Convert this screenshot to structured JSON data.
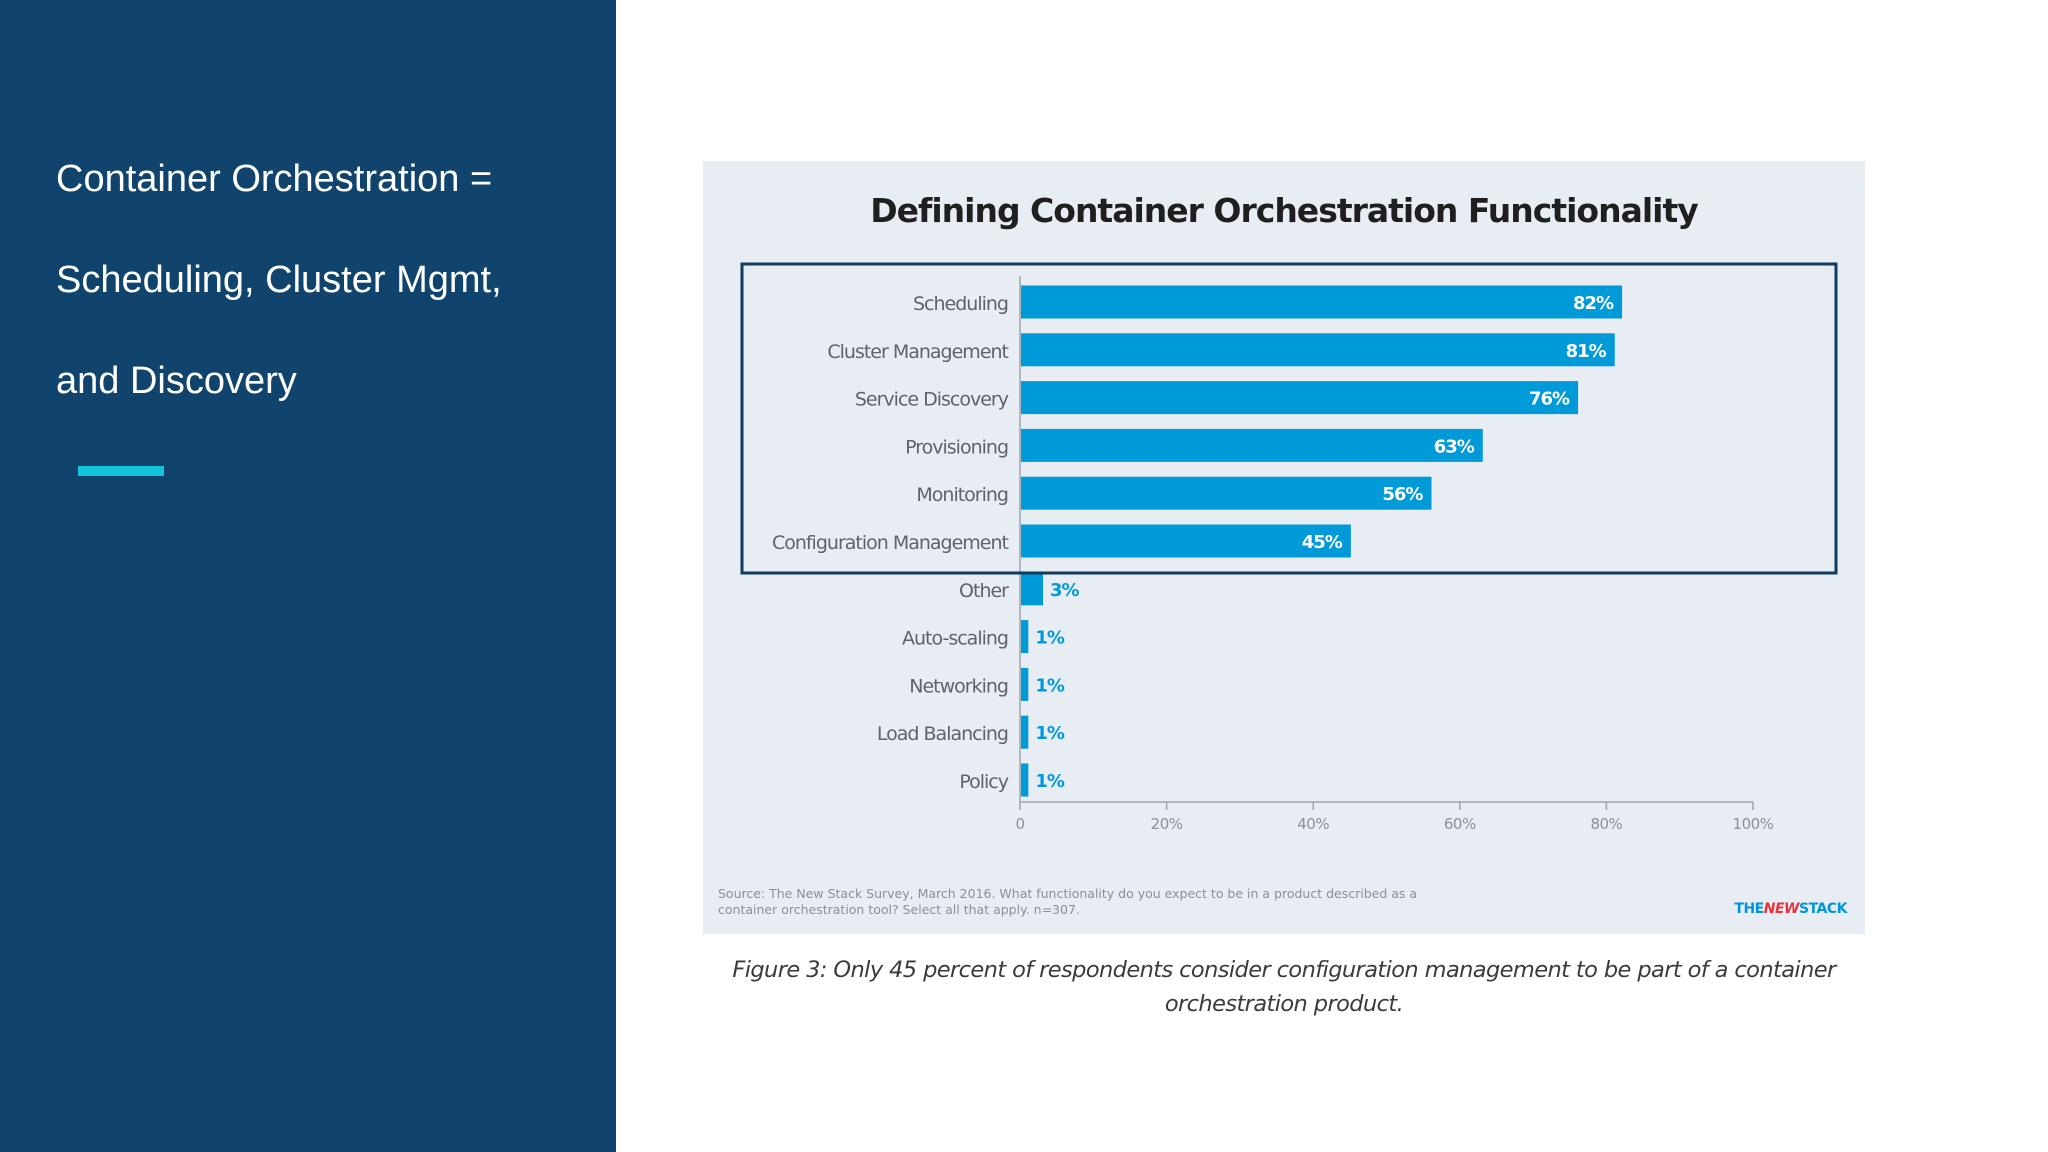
{
  "slide": {
    "heading_lines": [
      "Container Orchestration =",
      "Scheduling, Cluster Mgmt,",
      "and Discovery"
    ],
    "accent_color": "#14c4dc",
    "sidebar_color": "#10446d"
  },
  "figure": {
    "source": "Source: The New Stack Survey, March 2016. What functionality do you expect to be in a product described as a container orchestration tool? Select all that apply. n=307.",
    "brand": {
      "part1": "THE",
      "part2": "NEW",
      "part3": "STACK"
    },
    "caption": "Figure 3: Only 45 percent of respondents consider configuration management to be part of a container orchestration product."
  },
  "chart_data": {
    "type": "bar",
    "orientation": "horizontal",
    "title": "Defining Container Orchestration Functionality",
    "categories": [
      "Scheduling",
      "Cluster Management",
      "Service Discovery",
      "Provisioning",
      "Monitoring",
      "Configuration Management",
      "Other",
      "Auto-scaling",
      "Networking",
      "Load Balancing",
      "Policy"
    ],
    "values": [
      82,
      81,
      76,
      63,
      56,
      45,
      3,
      1,
      1,
      1,
      1
    ],
    "value_labels": [
      "82%",
      "81%",
      "76%",
      "63%",
      "56%",
      "45%",
      "3%",
      "1%",
      "1%",
      "1%",
      "1%"
    ],
    "xlim": [
      0,
      100
    ],
    "xticks": [
      0,
      20,
      40,
      60,
      80,
      100
    ],
    "xtick_labels": [
      "0",
      "20%",
      "40%",
      "60%",
      "80%",
      "100%"
    ],
    "highlighted_categories": [
      "Scheduling",
      "Cluster Management",
      "Service Discovery",
      "Provisioning",
      "Monitoring",
      "Configuration Management"
    ],
    "bar_color": "#009ad8",
    "highlight_color": "#0f3b5f",
    "grid": false,
    "legend": "none"
  }
}
